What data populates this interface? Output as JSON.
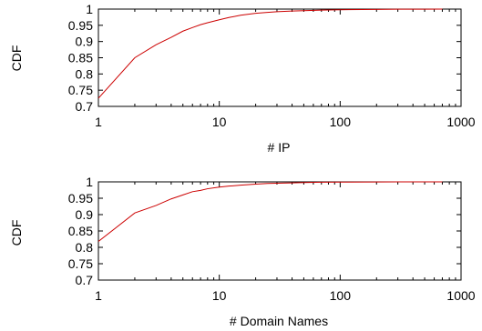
{
  "chart_data": [
    {
      "type": "line",
      "title": "",
      "xlabel": "# IP",
      "ylabel": "CDF",
      "xscale": "log",
      "xlim": [
        1,
        1000
      ],
      "ylim": [
        0.7,
        1
      ],
      "xticks": [
        1,
        10,
        100,
        1000
      ],
      "xtick_labels": [
        "1",
        "10",
        "100",
        "1000"
      ],
      "yticks": [
        0.7,
        0.75,
        0.8,
        0.85,
        0.9,
        0.95,
        1
      ],
      "ytick_labels": [
        "0.7",
        "0.75",
        "0.8",
        "0.85",
        "0.9",
        "0.95",
        "1"
      ],
      "grid": false,
      "legend": "none",
      "color": "#cc0000",
      "series": [
        {
          "x": [
            1,
            2,
            3,
            4,
            5,
            6,
            7,
            8,
            10,
            12,
            15,
            20,
            25,
            30,
            40,
            50,
            70,
            100,
            200,
            300,
            500,
            700
          ],
          "y": [
            0.725,
            0.85,
            0.89,
            0.913,
            0.932,
            0.943,
            0.952,
            0.958,
            0.967,
            0.974,
            0.981,
            0.987,
            0.99,
            0.992,
            0.994,
            0.995,
            0.997,
            0.998,
            0.999,
            0.9995,
            0.9998,
            1.0
          ]
        }
      ]
    },
    {
      "type": "line",
      "title": "",
      "xlabel": "# Domain Names",
      "ylabel": "CDF",
      "xscale": "log",
      "xlim": [
        1,
        1000
      ],
      "ylim": [
        0.7,
        1
      ],
      "xticks": [
        1,
        10,
        100,
        1000
      ],
      "xtick_labels": [
        "1",
        "10",
        "100",
        "1000"
      ],
      "yticks": [
        0.7,
        0.75,
        0.8,
        0.85,
        0.9,
        0.95,
        1
      ],
      "ytick_labels": [
        "0.7",
        "0.75",
        "0.8",
        "0.85",
        "0.9",
        "0.95",
        "1"
      ],
      "grid": false,
      "legend": "none",
      "color": "#cc0000",
      "series": [
        {
          "x": [
            1,
            2,
            3,
            4,
            5,
            6,
            7,
            8,
            10,
            12,
            15,
            20,
            25,
            30,
            40,
            50,
            70,
            100,
            200,
            300,
            500,
            700
          ],
          "y": [
            0.818,
            0.905,
            0.928,
            0.948,
            0.96,
            0.97,
            0.974,
            0.979,
            0.984,
            0.987,
            0.99,
            0.993,
            0.995,
            0.996,
            0.997,
            0.998,
            0.999,
            0.9993,
            0.9997,
            0.9999,
            1.0,
            1.0
          ]
        }
      ]
    }
  ]
}
